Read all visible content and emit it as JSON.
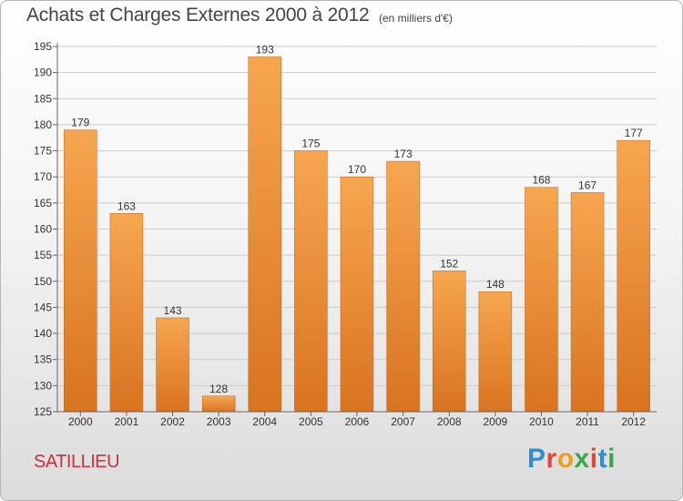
{
  "header": {
    "title": "Achats et Charges Externes 2000 à 2012",
    "unit": "(en milliers d'€)"
  },
  "footer": {
    "place": "SATILLIEU",
    "logo_text": "Proxiti"
  },
  "colors": {
    "bar_light": "#f7a650",
    "bar_dark": "#d97320",
    "grid": "#cccccc",
    "text": "#333333",
    "place": "#c8323c"
  },
  "chart_data": {
    "type": "bar",
    "categories": [
      "2000",
      "2001",
      "2002",
      "2003",
      "2004",
      "2005",
      "2006",
      "2007",
      "2008",
      "2009",
      "2010",
      "2011",
      "2012"
    ],
    "values": [
      179,
      163,
      143,
      128,
      193,
      175,
      170,
      173,
      152,
      148,
      168,
      167,
      177
    ],
    "ylim": [
      125,
      195
    ],
    "yticks": [
      125,
      130,
      135,
      140,
      145,
      150,
      155,
      160,
      165,
      170,
      175,
      180,
      185,
      190,
      195
    ],
    "grid": true,
    "data_labels": true
  }
}
